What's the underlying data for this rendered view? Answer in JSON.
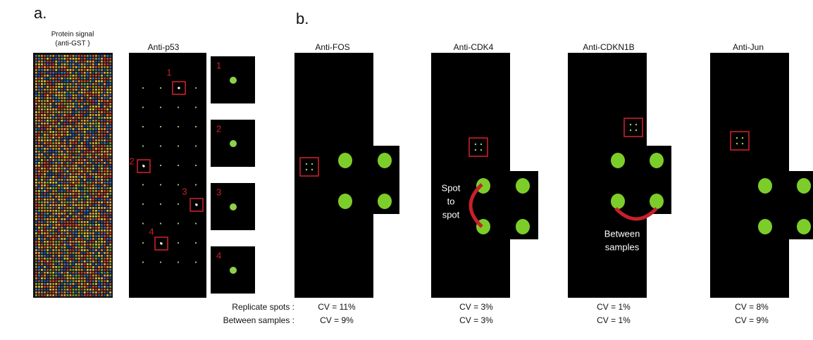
{
  "panel_a": {
    "label": "a.",
    "protein_signal": {
      "title_lines": [
        "Protein signal",
        "(anti-GST )"
      ]
    },
    "anti_p53": {
      "title": "Anti-p53",
      "box_labels": [
        "1",
        "2",
        "3",
        "4"
      ],
      "zoom_labels": [
        "1",
        "2",
        "3",
        "4"
      ]
    }
  },
  "panel_b": {
    "label": "b.",
    "row_labels": [
      "Replicate spots :",
      "Between samples :"
    ],
    "panels": [
      {
        "title": "Anti-FOS",
        "cv": [
          "CV = 11%",
          "CV = 9%"
        ]
      },
      {
        "title": "Anti-CDK4",
        "cv": [
          "CV = 3%",
          "CV = 3%"
        ],
        "annotation_lines": [
          "Spot",
          "to",
          "spot"
        ]
      },
      {
        "title": "Anti-CDKN1B",
        "cv": [
          "CV = 1%",
          "CV = 1%"
        ],
        "annotation_lines": [
          "Between",
          "samples"
        ]
      },
      {
        "title": "Anti-Jun",
        "cv": [
          "CV = 8%",
          "CV = 9%"
        ]
      }
    ]
  }
}
